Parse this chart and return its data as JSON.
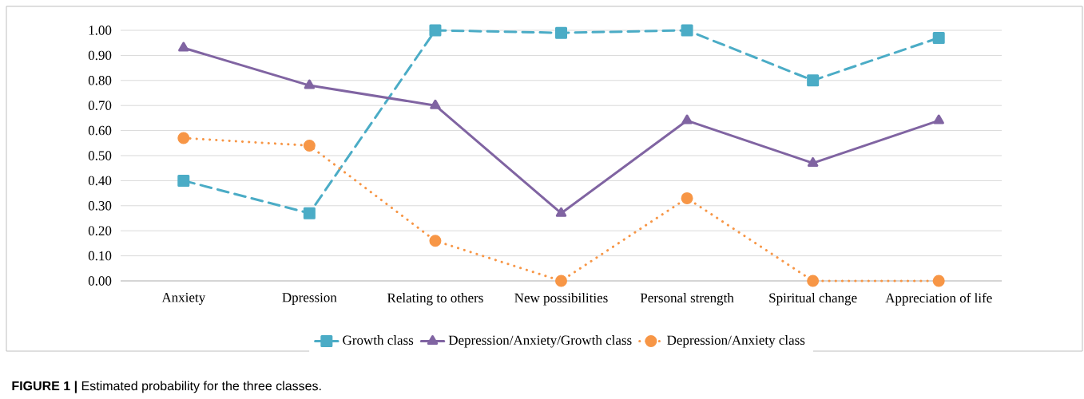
{
  "chart_data": {
    "type": "line",
    "categories": [
      "Anxiety",
      "Dpression",
      "Relating to others",
      "New possibilities",
      "Personal strength",
      "Spiritual change",
      "Appreciation of life"
    ],
    "series": [
      {
        "name": "Growth class",
        "color": "#4bacc6",
        "marker": "square",
        "line_style": "dashed",
        "values": [
          0.4,
          0.27,
          1.0,
          0.99,
          1.0,
          0.8,
          0.97
        ]
      },
      {
        "name": "Depression/Anxiety/Growth class",
        "color": "#8064a2",
        "marker": "triangle",
        "line_style": "solid",
        "values": [
          0.93,
          0.78,
          0.7,
          0.27,
          0.64,
          0.47,
          0.64
        ]
      },
      {
        "name": "Depression/Anxiety class",
        "color": "#f79646",
        "marker": "circle",
        "line_style": "dotted",
        "values": [
          0.57,
          0.54,
          0.16,
          0.0,
          0.33,
          0.0,
          0.0
        ]
      }
    ],
    "ylim": [
      0,
      1
    ],
    "yticks": [
      {
        "value": 0,
        "label": "0.00"
      },
      {
        "value": 0.1,
        "label": "0.10"
      },
      {
        "value": 0.2,
        "label": "0.20"
      },
      {
        "value": 0.3,
        "label": "0.30"
      },
      {
        "value": 0.4,
        "label": "0.40"
      },
      {
        "value": 0.5,
        "label": "0.50"
      },
      {
        "value": 0.6,
        "label": "0.60"
      },
      {
        "value": 0.7,
        "label": "0.70"
      },
      {
        "value": 0.8,
        "label": "0.80"
      },
      {
        "value": 0.9,
        "label": "0.90"
      },
      {
        "value": 1,
        "label": "1.00"
      }
    ],
    "grid": "y",
    "legend": "bottom",
    "annotations": [
      "**FIGURE 1 |** Estimated probability for the three classes."
    ]
  }
}
